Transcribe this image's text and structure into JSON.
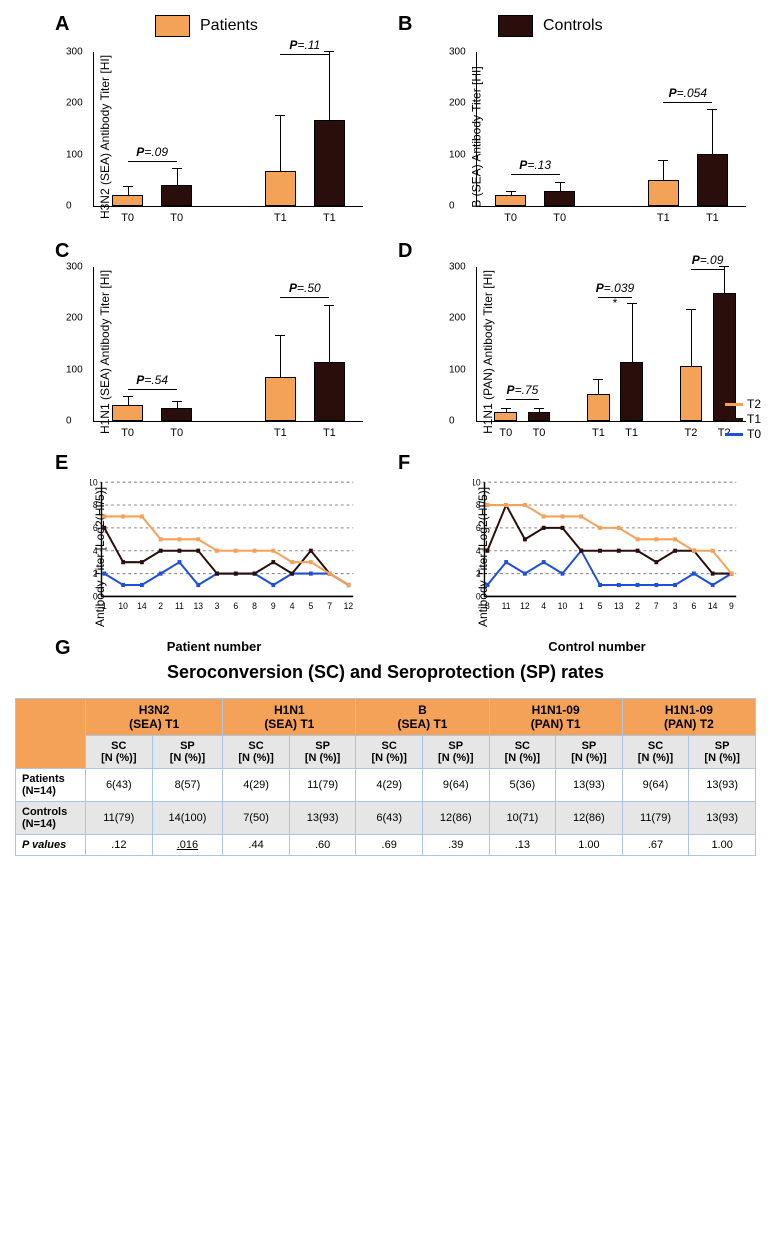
{
  "colors": {
    "patients": "#f5a259",
    "controls": "#2a0e0b",
    "t2_line": "#f5a259",
    "t1_line": "#2a0e0b",
    "t0_line": "#1f4fd6",
    "grid": "#888888",
    "table_border": "#a9c5e8",
    "table_header": "#f5a259",
    "table_shade": "#e6e6e6"
  },
  "legend_top": {
    "patients": "Patients",
    "controls": "Controls"
  },
  "panels": {
    "A": {
      "label": "A",
      "y_label": "H3N2 (SEA) Antibody Titer [HI]",
      "ylim": 300,
      "yticks": [
        0,
        100,
        200,
        300
      ],
      "bars": [
        {
          "x": "T0",
          "val": 22,
          "err": 15,
          "color": "patients"
        },
        {
          "x": "T0",
          "val": 40,
          "err": 32,
          "color": "controls"
        },
        {
          "x": "T1",
          "val": 68,
          "err": 108,
          "color": "patients"
        },
        {
          "x": "T1",
          "val": 168,
          "err": 135,
          "color": "controls"
        }
      ],
      "pvals": [
        {
          "span": [
            0,
            1
          ],
          "text": "=.09",
          "y": 85
        },
        {
          "span": [
            2,
            3
          ],
          "text": "=.11",
          "y": 310
        }
      ]
    },
    "B": {
      "label": "B",
      "y_label": "B (SEA) Antibody Titer [HI]",
      "ylim": 300,
      "yticks": [
        0,
        100,
        200,
        300
      ],
      "bars": [
        {
          "x": "T0",
          "val": 22,
          "err": 6,
          "color": "patients"
        },
        {
          "x": "T0",
          "val": 30,
          "err": 15,
          "color": "controls"
        },
        {
          "x": "T1",
          "val": 50,
          "err": 38,
          "color": "patients"
        },
        {
          "x": "T1",
          "val": 102,
          "err": 85,
          "color": "controls"
        }
      ],
      "pvals": [
        {
          "span": [
            0,
            1
          ],
          "text": "=.13",
          "y": 60
        },
        {
          "span": [
            2,
            3
          ],
          "text": "=.054",
          "y": 200
        }
      ]
    },
    "C": {
      "label": "C",
      "y_label": "H1N1 (SEA) Antibody Titer [HI]",
      "ylim": 300,
      "yticks": [
        0,
        100,
        200,
        300
      ],
      "bars": [
        {
          "x": "T0",
          "val": 32,
          "err": 14,
          "color": "patients"
        },
        {
          "x": "T0",
          "val": 25,
          "err": 12,
          "color": "controls"
        },
        {
          "x": "T1",
          "val": 85,
          "err": 80,
          "color": "patients"
        },
        {
          "x": "T1",
          "val": 115,
          "err": 110,
          "color": "controls"
        }
      ],
      "pvals": [
        {
          "span": [
            0,
            1
          ],
          "text": "=.54",
          "y": 60
        },
        {
          "span": [
            2,
            3
          ],
          "text": "=.50",
          "y": 240
        }
      ]
    },
    "D": {
      "label": "D",
      "y_label": "H1N1 (PAN) Antibody Titer [HI]",
      "ylim": 300,
      "yticks": [
        0,
        100,
        200,
        300
      ],
      "bars": [
        {
          "x": "T0",
          "val": 18,
          "err": 6,
          "color": "patients"
        },
        {
          "x": "T0",
          "val": 18,
          "err": 6,
          "color": "controls"
        },
        {
          "x": "T1",
          "val": 52,
          "err": 28,
          "color": "patients"
        },
        {
          "x": "T1",
          "val": 115,
          "err": 112,
          "color": "controls"
        },
        {
          "x": "T2",
          "val": 108,
          "err": 108,
          "color": "patients"
        },
        {
          "x": "T2",
          "val": 250,
          "err": 55,
          "color": "controls"
        }
      ],
      "pvals": [
        {
          "span": [
            0,
            1
          ],
          "text": "=.75",
          "y": 40
        },
        {
          "span": [
            2,
            3
          ],
          "text": "=.039",
          "y": 240,
          "star": true
        },
        {
          "span": [
            4,
            5
          ],
          "text": "=.09",
          "y": 315
        }
      ]
    },
    "E": {
      "label": "E",
      "y_label": "Antibody Titer [Log2(HI/5)]",
      "x_label": "Patient number",
      "ylim": 10,
      "yticks": [
        0,
        2,
        4,
        6,
        8,
        10
      ],
      "x_order": [
        "1",
        "10",
        "14",
        "2",
        "11",
        "13",
        "3",
        "6",
        "8",
        "9",
        "4",
        "5",
        "7",
        "12"
      ],
      "series": {
        "T2": [
          7,
          7,
          7,
          5,
          5,
          5,
          4,
          4,
          4,
          4,
          3,
          3,
          2,
          1
        ],
        "T1": [
          6,
          3,
          3,
          4,
          4,
          4,
          2,
          2,
          2,
          3,
          2,
          4,
          2,
          1
        ],
        "T0": [
          2,
          1,
          1,
          2,
          3,
          1,
          2,
          2,
          2,
          1,
          2,
          2,
          2,
          1
        ]
      }
    },
    "F": {
      "label": "F",
      "y_label": "Antibody Titer [Log2(HI/5)]",
      "x_label": "Control number",
      "ylim": 10,
      "yticks": [
        0,
        2,
        4,
        6,
        8,
        10
      ],
      "x_order": [
        "8",
        "11",
        "12",
        "4",
        "10",
        "1",
        "5",
        "13",
        "2",
        "7",
        "3",
        "6",
        "14",
        "9"
      ],
      "series": {
        "T2": [
          8,
          8,
          8,
          7,
          7,
          7,
          6,
          6,
          5,
          5,
          5,
          4,
          4,
          2
        ],
        "T1": [
          4,
          8,
          5,
          6,
          6,
          4,
          4,
          4,
          4,
          3,
          4,
          4,
          2,
          2
        ],
        "T0": [
          1,
          3,
          2,
          3,
          2,
          4,
          1,
          1,
          1,
          1,
          1,
          2,
          1,
          2
        ]
      }
    }
  },
  "line_legend": {
    "T2": "T2",
    "T1": "T1",
    "T0": "T0"
  },
  "table": {
    "title": "Seroconversion (SC) and Seroprotection (SP) rates",
    "groups": [
      "H3N2\n(SEA) T1",
      "H1N1\n(SEA) T1",
      "B\n(SEA) T1",
      "H1N1-09\n(PAN) T1",
      "H1N1-09\n(PAN) T2"
    ],
    "sub": [
      "SC\n[N (%)]",
      "SP\n[N (%)]"
    ],
    "rows": [
      {
        "label": "Patients\n(N=14)",
        "vals": [
          "6(43)",
          "8(57)",
          "4(29)",
          "11(79)",
          "4(29)",
          "9(64)",
          "5(36)",
          "13(93)",
          "9(64)",
          "13(93)"
        ]
      },
      {
        "label": "Controls\n(N=14)",
        "vals": [
          "11(79)",
          "14(100)",
          "7(50)",
          "13(93)",
          "6(43)",
          "12(86)",
          "10(71)",
          "12(86)",
          "11(79)",
          "13(93)"
        ],
        "shade": true
      },
      {
        "label": "P values",
        "vals": [
          ".12",
          ".016",
          ".44",
          ".60",
          ".69",
          ".39",
          ".13",
          "1.00",
          ".67",
          "1.00"
        ],
        "pval": true,
        "underline_idx": 1
      }
    ]
  },
  "G_label": "G"
}
